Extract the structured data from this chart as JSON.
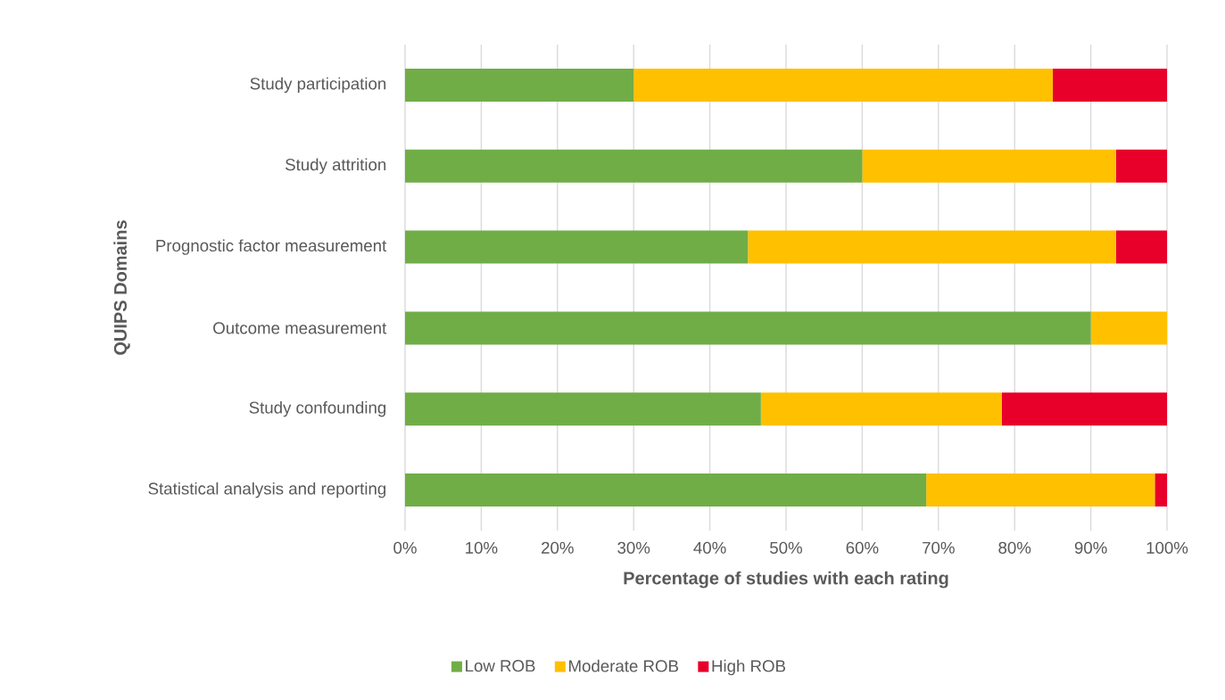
{
  "chart_data": {
    "type": "bar",
    "orientation": "horizontal",
    "stacked": true,
    "xlabel": "Percentage of studies with each rating",
    "ylabel": "QUIPS Domains",
    "categories": [
      "Study participation",
      "Study attrition",
      "Prognostic factor measurement",
      "Outcome measurement",
      "Study confounding",
      "Statistical analysis and reporting"
    ],
    "series": [
      {
        "name": "Low ROB",
        "color": "#70ad47",
        "values": [
          30,
          60,
          45,
          90,
          46.7,
          68.4
        ]
      },
      {
        "name": "Moderate ROB",
        "color": "#ffc000",
        "values": [
          55,
          33.3,
          48.3,
          10,
          31.6,
          30
        ]
      },
      {
        "name": "High ROB",
        "color": "#e8002a",
        "values": [
          15,
          6.7,
          6.7,
          0,
          21.7,
          1.6
        ]
      }
    ],
    "xlim": [
      0,
      100
    ],
    "xticks": [
      {
        "value": 0,
        "label": "0%"
      },
      {
        "value": 10,
        "label": "10%"
      },
      {
        "value": 20,
        "label": "20%"
      },
      {
        "value": 30,
        "label": "30%"
      },
      {
        "value": 40,
        "label": "40%"
      },
      {
        "value": 50,
        "label": "50%"
      },
      {
        "value": 60,
        "label": "60%"
      },
      {
        "value": 70,
        "label": "70%"
      },
      {
        "value": 80,
        "label": "80%"
      },
      {
        "value": 90,
        "label": "90%"
      },
      {
        "value": 100,
        "label": "100%"
      }
    ],
    "grid": "x",
    "legend": "bottom"
  }
}
